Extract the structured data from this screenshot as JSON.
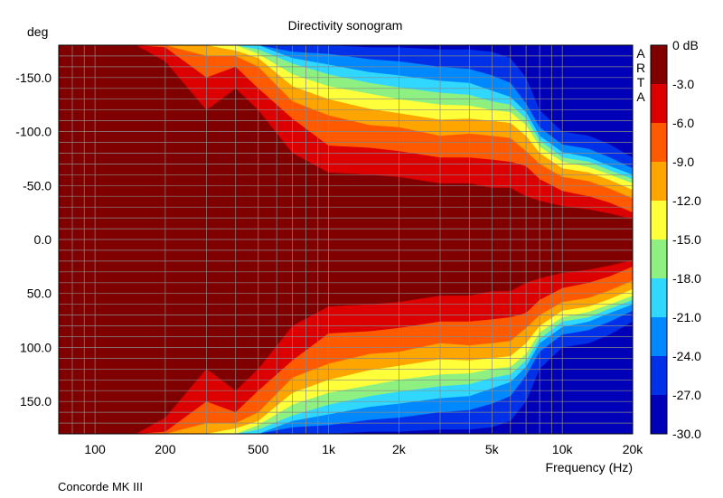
{
  "chart_data": {
    "type": "heatmap",
    "title": "Directivity sonogram",
    "xlabel": "Frequency (Hz)",
    "ylabel": "deg",
    "footer": "Concorde MK III",
    "watermark": "ARTA",
    "x_scale": "log",
    "xlim": [
      70,
      20000
    ],
    "ylim": [
      -180,
      180
    ],
    "x_ticks": [
      {
        "value": 100,
        "label": "100"
      },
      {
        "value": 200,
        "label": "200"
      },
      {
        "value": 500,
        "label": "500"
      },
      {
        "value": 1000,
        "label": "1k"
      },
      {
        "value": 2000,
        "label": "2k"
      },
      {
        "value": 5000,
        "label": "5k"
      },
      {
        "value": 10000,
        "label": "10k"
      },
      {
        "value": 20000,
        "label": "20k"
      }
    ],
    "y_ticks": [
      {
        "value": -150,
        "label": "-150.0"
      },
      {
        "value": -100,
        "label": "-100.0"
      },
      {
        "value": -50,
        "label": "-50.0"
      },
      {
        "value": 0,
        "label": "0.0"
      },
      {
        "value": 50,
        "label": "50.0"
      },
      {
        "value": 100,
        "label": "100.0"
      },
      {
        "value": 150,
        "label": "150.0"
      }
    ],
    "grid": true,
    "colorbar": {
      "labels": [
        "0 dB",
        "-3.0",
        "-6.0",
        "-9.0",
        "-12.0",
        "-15.0",
        "-18.0",
        "-21.0",
        "-24.0",
        "-27.0",
        "-30.0"
      ],
      "colors": [
        "#800000",
        "#dd0000",
        "#ff5a00",
        "#ffa500",
        "#ffff3a",
        "#8ef080",
        "#30d8ff",
        "#0088ff",
        "#0030e8",
        "#0000b8"
      ]
    },
    "contour_freqs": [
      70,
      100,
      150,
      200,
      300,
      400,
      500,
      700,
      1000,
      1500,
      2000,
      3000,
      4000,
      5000,
      6000,
      7000,
      8000,
      10000,
      13000,
      16000,
      20000
    ],
    "contour_levels": [
      -3,
      -6,
      -9,
      -12,
      -15,
      -18,
      -21,
      -24,
      -27
    ],
    "contour_angles_deg": [
      [
        180,
        180,
        180,
        165,
        120,
        140,
        120,
        80,
        62,
        60,
        58,
        52,
        52,
        48,
        48,
        40,
        36,
        31,
        28,
        24,
        19
      ],
      [
        180,
        180,
        180,
        178,
        150,
        160,
        140,
        112,
        87,
        85,
        82,
        76,
        76,
        74,
        72,
        68,
        56,
        45,
        40,
        34,
        25
      ],
      [
        180,
        180,
        180,
        180,
        170,
        170,
        160,
        128,
        115,
        106,
        104,
        96,
        98,
        96,
        94,
        82,
        70,
        58,
        54,
        47,
        38
      ],
      [
        180,
        180,
        180,
        180,
        180,
        175,
        168,
        142,
        130,
        121,
        117,
        111,
        112,
        110,
        108,
        96,
        80,
        66,
        62,
        55,
        46
      ],
      [
        180,
        180,
        180,
        180,
        180,
        180,
        172,
        153,
        142,
        135,
        130,
        125,
        124,
        120,
        118,
        106,
        86,
        72,
        67,
        60,
        52
      ],
      [
        180,
        180,
        180,
        180,
        180,
        180,
        176,
        163,
        153,
        145,
        141,
        136,
        134,
        128,
        125,
        112,
        92,
        76,
        72,
        64,
        56
      ],
      [
        180,
        180,
        180,
        180,
        180,
        180,
        180,
        168,
        162,
        155,
        152,
        147,
        145,
        138,
        132,
        118,
        96,
        81,
        76,
        68,
        60
      ],
      [
        180,
        180,
        180,
        180,
        180,
        180,
        180,
        174,
        172,
        167,
        165,
        160,
        158,
        152,
        145,
        126,
        104,
        88,
        84,
        76,
        66
      ],
      [
        180,
        180,
        180,
        180,
        180,
        180,
        180,
        180,
        180,
        178,
        178,
        176,
        176,
        174,
        168,
        150,
        120,
        100,
        96,
        88,
        76
      ]
    ]
  }
}
